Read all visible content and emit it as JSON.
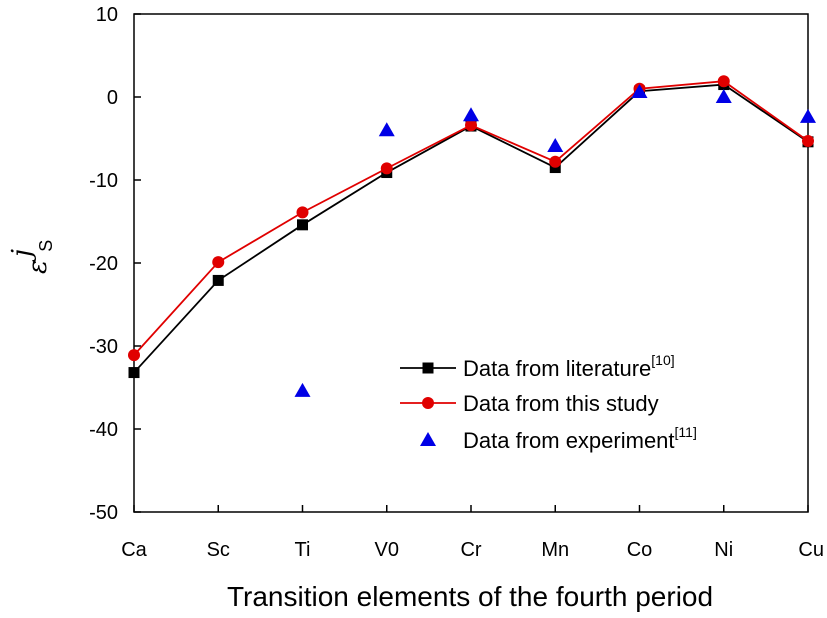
{
  "chart_data": {
    "type": "line",
    "xlabel": "Transition elements of the fourth period",
    "ylabel": {
      "main": "ε",
      "subscript": "S",
      "superscript": "j"
    },
    "categories": [
      "Ca",
      "Sc",
      "Ti",
      "V0",
      "Cr",
      "Mn",
      "Co",
      "Ni",
      "Cu"
    ],
    "ylim": [
      -50,
      10
    ],
    "yticks": [
      -50,
      -40,
      -30,
      -20,
      -10,
      0,
      10
    ],
    "grid": false,
    "legend_position": "bottom-right",
    "series": [
      {
        "name": "Data from literature",
        "name_sup": "[10]",
        "style": "line-square",
        "color": "#000000",
        "values": [
          -33.2,
          -22.1,
          -15.4,
          -9.1,
          -3.5,
          -8.5,
          0.7,
          1.5,
          -5.4
        ]
      },
      {
        "name": "Data from this study",
        "name_sup": "",
        "style": "line-circle",
        "color": "#e00000",
        "values": [
          -31.1,
          -19.9,
          -13.9,
          -8.6,
          -3.4,
          -7.8,
          1.0,
          1.9,
          -5.3
        ]
      },
      {
        "name": "Data from experiment",
        "name_sup": "[11]",
        "style": "triangle",
        "color": "#0000e6",
        "values": [
          null,
          null,
          -35.4,
          -4.0,
          -2.2,
          -5.9,
          0.6,
          0.0,
          -2.4
        ]
      }
    ]
  }
}
